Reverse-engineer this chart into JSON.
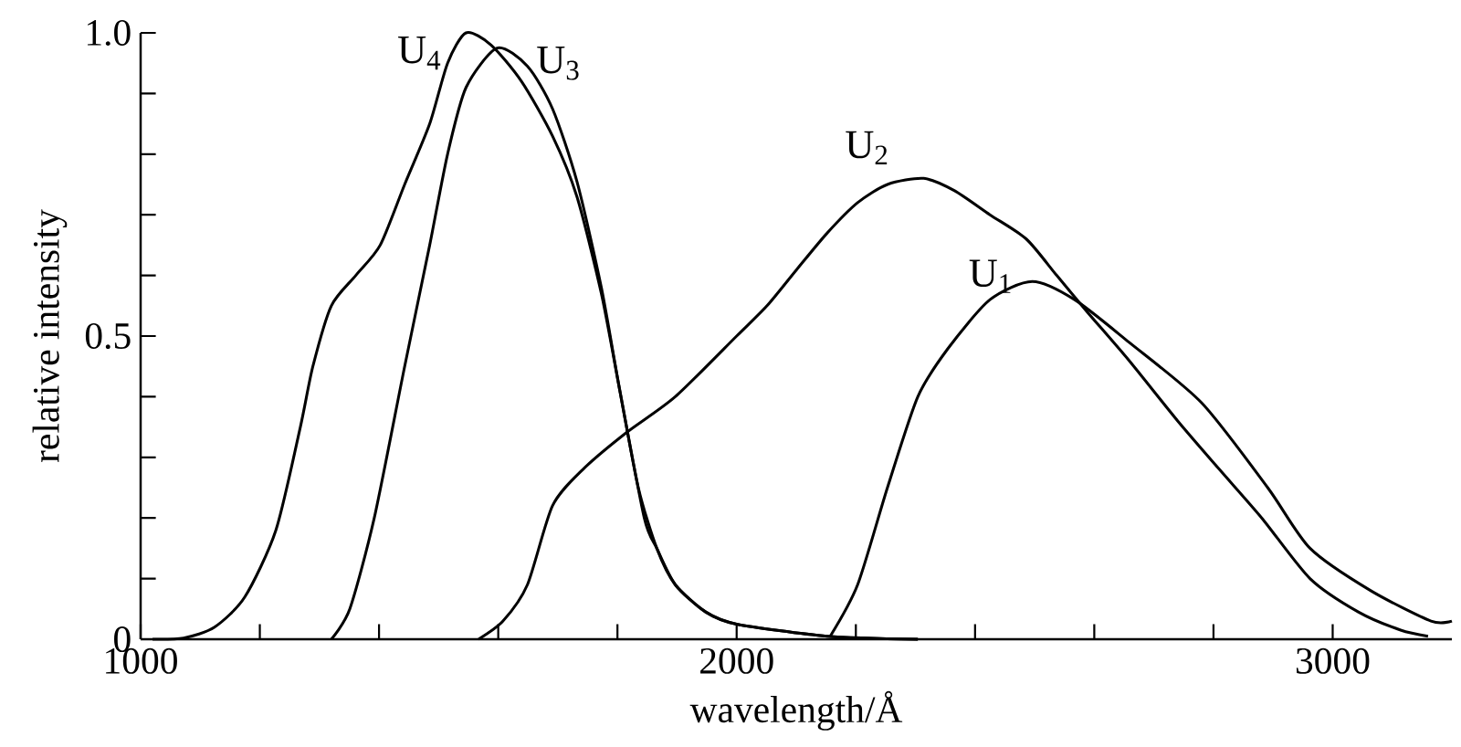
{
  "chart_data": {
    "type": "line",
    "xlabel": "wavelength/Å",
    "ylabel": "relative intensity",
    "xlim": [
      1000,
      3200
    ],
    "ylim": [
      0,
      1.0
    ],
    "xticks": [
      1000,
      {
        "value": 1200,
        "label": null
      },
      {
        "value": 1400,
        "label": null
      },
      {
        "value": 1600,
        "label": null
      },
      {
        "value": 1800,
        "label": null
      },
      2000,
      {
        "value": 2200,
        "label": null
      },
      {
        "value": 2400,
        "label": null
      },
      {
        "value": 2600,
        "label": null
      },
      {
        "value": 2800,
        "label": null
      },
      3000
    ],
    "yticks": [
      0,
      {
        "value": 0.1,
        "label": null
      },
      {
        "value": 0.2,
        "label": null
      },
      {
        "value": 0.3,
        "label": null
      },
      {
        "value": 0.4,
        "label": null
      },
      0.5,
      {
        "value": 0.6,
        "label": null
      },
      {
        "value": 0.7,
        "label": null
      },
      {
        "value": 0.8,
        "label": null
      },
      {
        "value": 0.9,
        "label": null
      },
      {
        "value": 1.0,
        "label": "1.0"
      }
    ],
    "grid": false,
    "legend": false,
    "marker": "none",
    "line_style": "solid",
    "series": [
      {
        "name": "U$_{1}$",
        "color": "#000000",
        "x": [
          2157,
          2203,
          2253,
          2304,
          2355,
          2425,
          2496,
          2567,
          2658,
          2780,
          2891,
          2962,
          3064,
          3165,
          3200
        ],
        "values": [
          0.005,
          0.09,
          0.25,
          0.4,
          0.48,
          0.56,
          0.59,
          0.56,
          0.49,
          0.39,
          0.25,
          0.15,
          0.08,
          0.03,
          0.03
        ]
      },
      {
        "name": "U$_{2}$",
        "color": "#000000",
        "x": [
          1567,
          1608,
          1649,
          1691,
          1742,
          1814,
          1897,
          2000,
          2051,
          2101,
          2152,
          2203,
          2253,
          2314,
          2365,
          2425,
          2486,
          2537,
          2588,
          2658,
          2740,
          2810,
          2881,
          2962,
          3043,
          3114,
          3160
        ],
        "values": [
          0,
          0.03,
          0.09,
          0.22,
          0.28,
          0.34,
          0.4,
          0.5,
          0.55,
          0.61,
          0.67,
          0.72,
          0.75,
          0.76,
          0.74,
          0.7,
          0.66,
          0.6,
          0.54,
          0.46,
          0.36,
          0.28,
          0.2,
          0.1,
          0.045,
          0.015,
          0.005
        ]
      },
      {
        "name": "U$_{3}$",
        "color": "#000000",
        "x": [
          1320,
          1351,
          1392,
          1443,
          1485,
          1515,
          1546,
          1598,
          1649,
          1691,
          1732,
          1773,
          1804,
          1845,
          1866,
          1897,
          1948,
          2000,
          2152,
          2304
        ],
        "values": [
          0,
          0.05,
          0.2,
          0.45,
          0.65,
          0.8,
          0.91,
          0.975,
          0.945,
          0.875,
          0.755,
          0.58,
          0.41,
          0.2,
          0.15,
          0.09,
          0.045,
          0.025,
          0.005,
          0
        ]
      },
      {
        "name": "U$_{4}$",
        "color": "#000000",
        "x": [
          1020,
          1072,
          1124,
          1175,
          1227,
          1268,
          1289,
          1320,
          1361,
          1402,
          1443,
          1485,
          1515,
          1546,
          1588,
          1639,
          1691,
          1732,
          1773,
          1804,
          1835,
          1866,
          1897,
          1948,
          2000,
          2152,
          2304
        ],
        "values": [
          0,
          0.002,
          0.02,
          0.07,
          0.18,
          0.35,
          0.45,
          0.55,
          0.6,
          0.65,
          0.75,
          0.85,
          0.95,
          1.0,
          0.98,
          0.92,
          0.83,
          0.73,
          0.57,
          0.41,
          0.25,
          0.15,
          0.09,
          0.045,
          0.025,
          0.005,
          0
        ]
      }
    ]
  }
}
